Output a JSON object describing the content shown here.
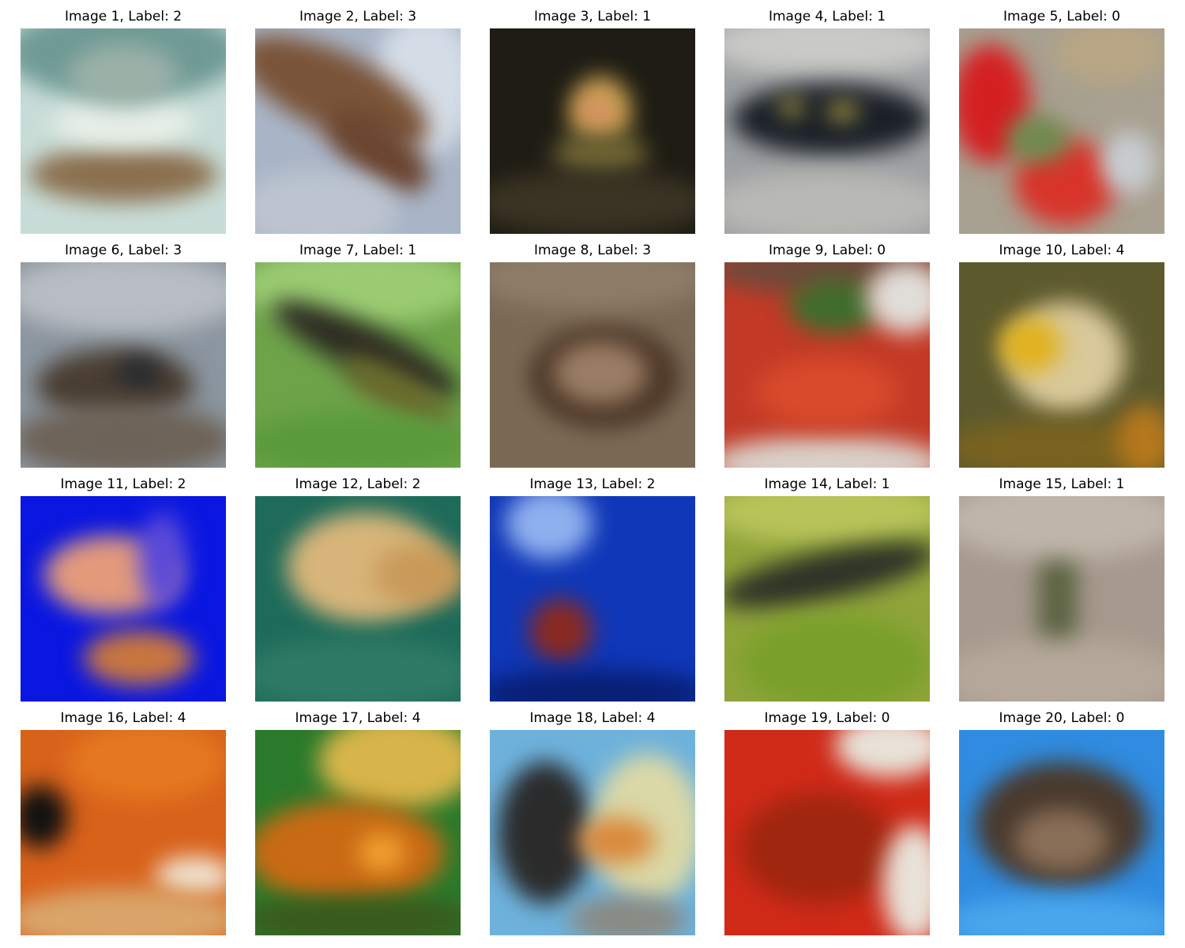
{
  "figure": {
    "images": [
      {
        "caption": "Image 1, Label: 2",
        "label": 2,
        "scene": "brown woven basket on pale teal background",
        "colors": [
          "#c9ddd8",
          "#8a6f4e",
          "#e8efe8"
        ]
      },
      {
        "caption": "Image 2, Label: 3",
        "label": 3,
        "scene": "brown animal over grey-blue background",
        "colors": [
          "#a9b5c7",
          "#7a5438",
          "#c6cfd9"
        ]
      },
      {
        "caption": "Image 3, Label: 1",
        "label": 1,
        "scene": "yellow-green creature on dark background",
        "colors": [
          "#1e1c14",
          "#b49a4a",
          "#3b3424"
        ]
      },
      {
        "caption": "Image 4, Label: 1",
        "label": 1,
        "scene": "dark spotted creature on grey rocks",
        "colors": [
          "#9ea1a3",
          "#1b2028",
          "#c9c9c6"
        ]
      },
      {
        "caption": "Image 5, Label: 0",
        "label": 0,
        "scene": "red fruit with green and grey surroundings",
        "colors": [
          "#a8a090",
          "#d52022",
          "#6e8a4f"
        ]
      },
      {
        "caption": "Image 6, Label: 3",
        "label": 3,
        "scene": "mottled grey-brown texture",
        "colors": [
          "#8c96a0",
          "#4a3e32",
          "#b7bdc2"
        ]
      },
      {
        "caption": "Image 7, Label: 1",
        "label": 1,
        "scene": "dark striped creature in green grass",
        "colors": [
          "#6ea34a",
          "#2e2d22",
          "#9acb72"
        ]
      },
      {
        "caption": "Image 8, Label: 3",
        "label": 3,
        "scene": "round brown object on brown ground",
        "colors": [
          "#7a6a55",
          "#4a3526",
          "#8d7d68"
        ]
      },
      {
        "caption": "Image 9, Label: 0",
        "label": 0,
        "scene": "red berries with green leaves in bowl",
        "colors": [
          "#c33a26",
          "#3f6d2d",
          "#d9d0c8"
        ]
      },
      {
        "caption": "Image 10, Label: 4",
        "label": 4,
        "scene": "pale yellow object on olive background",
        "colors": [
          "#5d5a2e",
          "#d9c99a",
          "#e0b21e"
        ]
      },
      {
        "caption": "Image 11, Label: 2",
        "label": 2,
        "scene": "orange jellyfish on bright blue background",
        "colors": [
          "#0a17e0",
          "#e39a7b",
          "#c9763f"
        ]
      },
      {
        "caption": "Image 12, Label: 2",
        "label": 2,
        "scene": "yellow object on teal-green background",
        "colors": [
          "#1e6b5a",
          "#d8b57a",
          "#2e7a66"
        ]
      },
      {
        "caption": "Image 13, Label: 2",
        "label": 2,
        "scene": "red sphere in deep blue water",
        "colors": [
          "#1037b8",
          "#8a2a1f",
          "#8fb0ee"
        ]
      },
      {
        "caption": "Image 14, Label: 1",
        "label": 1,
        "scene": "lizard on branch with green foliage",
        "colors": [
          "#8fa43a",
          "#2f3327",
          "#b8c45a"
        ]
      },
      {
        "caption": "Image 15, Label: 1",
        "label": 1,
        "scene": "small creature on beige-grey ground",
        "colors": [
          "#a69a8e",
          "#5c6342",
          "#c0b5aa"
        ]
      },
      {
        "caption": "Image 16, Label: 4",
        "label": 4,
        "scene": "close-up orange fish with black eye",
        "colors": [
          "#d9621b",
          "#111111",
          "#efe3d0"
        ]
      },
      {
        "caption": "Image 17, Label: 4",
        "label": 4,
        "scene": "orange fish with green and yellow background",
        "colors": [
          "#2b7a2b",
          "#c96a14",
          "#d8b54a"
        ]
      },
      {
        "caption": "Image 18, Label: 4",
        "label": 4,
        "scene": "small orange fish near dark box on light blue",
        "colors": [
          "#6eb2dc",
          "#d98a3c",
          "#2b2b2b"
        ]
      },
      {
        "caption": "Image 19, Label: 0",
        "label": 0,
        "scene": "red fruit pile on light background",
        "colors": [
          "#d02a18",
          "#e8e2d8",
          "#a0260f"
        ]
      },
      {
        "caption": "Image 20, Label: 0",
        "label": 0,
        "scene": "dark textured object on bright blue background",
        "colors": [
          "#2f8ce0",
          "#4a3a2d",
          "#8a6f58"
        ]
      }
    ]
  }
}
